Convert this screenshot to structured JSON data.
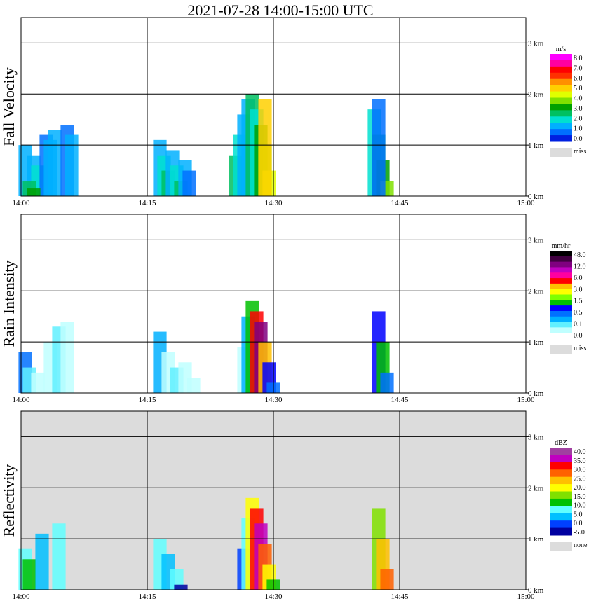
{
  "title": "2021-07-28   14:00-15:00 UTC",
  "colors": {
    "miss": "#dcdcdc",
    "grid": "#000000",
    "frame": "#000000"
  },
  "chart_data": [
    {
      "type": "heatmap",
      "title": "Fall Velocity",
      "ylabel": "Fall Velocity",
      "x_ticks": [
        "14:00",
        "14:15",
        "14:30",
        "14:45",
        "15:00"
      ],
      "y_ticks": [
        "0 km",
        "1 km",
        "2 km",
        "3 km"
      ],
      "ylim": [
        0,
        3.5
      ],
      "background": "#ffffff",
      "colorbar": {
        "unit": "m/s",
        "colors": [
          "#0020e0",
          "#0070ff",
          "#00b0ff",
          "#00e0d0",
          "#00c060",
          "#00a000",
          "#80e000",
          "#e0ff00",
          "#ffd000",
          "#ff9000",
          "#ff3000",
          "#ff0000",
          "#ff00a0",
          "#ff00ff"
        ],
        "labels": [
          "8.0",
          "7.0",
          "6.0",
          "5.0",
          "4.0",
          "3.0",
          "2.0",
          "1.0",
          "0.0"
        ],
        "miss_label": "miss"
      },
      "cells": [
        {
          "t": 0.5,
          "h": 1.0,
          "v": 2
        },
        {
          "t": 1.5,
          "h": 0.8,
          "v": 2
        },
        {
          "t": 2.0,
          "h": 0.6,
          "v": 3
        },
        {
          "t": 3.0,
          "h": 1.2,
          "v": 1
        },
        {
          "t": 3.5,
          "h": 1.1,
          "v": 2
        },
        {
          "t": 4.0,
          "h": 1.3,
          "v": 2
        },
        {
          "t": 5.5,
          "h": 1.4,
          "v": 1
        },
        {
          "t": 6.0,
          "h": 1.2,
          "v": 2
        },
        {
          "t": 1.0,
          "h": 0.3,
          "v": 4
        },
        {
          "t": 1.5,
          "h": 0.15,
          "v": 5
        },
        {
          "t": 16.5,
          "h": 1.1,
          "v": 2
        },
        {
          "t": 17.0,
          "h": 0.8,
          "v": 3
        },
        {
          "t": 17.5,
          "h": 0.5,
          "v": 4
        },
        {
          "t": 18.0,
          "h": 0.9,
          "v": 2
        },
        {
          "t": 18.5,
          "h": 0.6,
          "v": 3
        },
        {
          "t": 19.0,
          "h": 0.3,
          "v": 4
        },
        {
          "t": 19.5,
          "h": 0.7,
          "v": 2
        },
        {
          "t": 20.0,
          "h": 0.5,
          "v": 1
        },
        {
          "t": 25.5,
          "h": 0.8,
          "v": 4
        },
        {
          "t": 26.0,
          "h": 1.2,
          "v": 3
        },
        {
          "t": 26.5,
          "h": 1.6,
          "v": 2
        },
        {
          "t": 27.0,
          "h": 1.9,
          "v": 2
        },
        {
          "t": 27.5,
          "h": 2.0,
          "v": 4
        },
        {
          "t": 28.0,
          "h": 1.7,
          "v": 3
        },
        {
          "t": 28.5,
          "h": 1.4,
          "v": 5
        },
        {
          "t": 29.0,
          "h": 1.0,
          "v": 6
        },
        {
          "t": 29.5,
          "h": 0.5,
          "v": 7
        },
        {
          "t": 29.0,
          "h": 1.9,
          "v": 8
        },
        {
          "t": 42.0,
          "h": 1.7,
          "v": 3
        },
        {
          "t": 42.5,
          "h": 1.2,
          "v": 4
        },
        {
          "t": 43.0,
          "h": 0.7,
          "v": 5
        },
        {
          "t": 43.5,
          "h": 0.3,
          "v": 6
        },
        {
          "t": 42.5,
          "h": 1.9,
          "v": 1
        }
      ]
    },
    {
      "type": "heatmap",
      "title": "Rain Intensity",
      "ylabel": "Rain Intensity",
      "x_ticks": [
        "14:00",
        "14:15",
        "14:30",
        "14:45",
        "15:00"
      ],
      "y_ticks": [
        "0 km",
        "1 km",
        "2 km",
        "3 km"
      ],
      "ylim": [
        0,
        3.5
      ],
      "background": "#ffffff",
      "colorbar": {
        "unit": "mm/hr",
        "colors": [
          "#ffffff",
          "#c0ffff",
          "#60f0ff",
          "#00b0ff",
          "#0070ff",
          "#0000ff",
          "#00c000",
          "#80ff00",
          "#ffff00",
          "#ffc000",
          "#ff0000",
          "#ff00a0",
          "#c000c0",
          "#800080",
          "#400040",
          "#000000"
        ],
        "labels": [
          "48.0",
          "12.0",
          "6.0",
          "3.0",
          "1.5",
          "0.5",
          "0.1",
          "0.0"
        ],
        "miss_label": "miss"
      },
      "cells": [
        {
          "t": 0.5,
          "h": 0.8,
          "v": 4
        },
        {
          "t": 1.0,
          "h": 0.5,
          "v": 2
        },
        {
          "t": 2.0,
          "h": 0.4,
          "v": 1
        },
        {
          "t": 3.5,
          "h": 1.0,
          "v": 1
        },
        {
          "t": 4.5,
          "h": 1.3,
          "v": 2
        },
        {
          "t": 5.5,
          "h": 1.4,
          "v": 1
        },
        {
          "t": 16.5,
          "h": 1.2,
          "v": 3
        },
        {
          "t": 17.5,
          "h": 0.8,
          "v": 1
        },
        {
          "t": 18.5,
          "h": 0.5,
          "v": 2
        },
        {
          "t": 19.5,
          "h": 0.6,
          "v": 1
        },
        {
          "t": 20.5,
          "h": 0.3,
          "v": 1
        },
        {
          "t": 26.5,
          "h": 0.9,
          "v": 1
        },
        {
          "t": 27.0,
          "h": 1.5,
          "v": 3
        },
        {
          "t": 27.5,
          "h": 1.8,
          "v": 6
        },
        {
          "t": 28.0,
          "h": 1.6,
          "v": 10
        },
        {
          "t": 28.5,
          "h": 1.4,
          "v": 13
        },
        {
          "t": 29.0,
          "h": 1.0,
          "v": 9
        },
        {
          "t": 29.5,
          "h": 0.6,
          "v": 5
        },
        {
          "t": 30.0,
          "h": 0.2,
          "v": 4
        },
        {
          "t": 42.5,
          "h": 1.6,
          "v": 5
        },
        {
          "t": 43.0,
          "h": 1.0,
          "v": 6
        },
        {
          "t": 43.5,
          "h": 0.4,
          "v": 4
        }
      ]
    },
    {
      "type": "heatmap",
      "title": "Reflectivity",
      "ylabel": "Reflectivity",
      "x_ticks": [
        "14:00",
        "14:15",
        "14:30",
        "14:45",
        "15:00"
      ],
      "y_ticks": [
        "0 km",
        "1 km",
        "2 km",
        "3 km"
      ],
      "ylim": [
        0,
        3.5
      ],
      "background": "#dcdcdc",
      "colorbar": {
        "unit": "dBZ",
        "colors": [
          "#0000a0",
          "#0040ff",
          "#00c0ff",
          "#60ffff",
          "#00c000",
          "#80e000",
          "#ffff00",
          "#ffc000",
          "#ff6000",
          "#ff0000",
          "#c000c0",
          "#a040a0"
        ],
        "labels": [
          "40.0",
          "35.0",
          "30.0",
          "25.0",
          "20.0",
          "15.0",
          "10.0",
          "5.0",
          "0.0",
          "-5.0"
        ],
        "miss_label": "none"
      },
      "cells": [
        {
          "t": 0.5,
          "h": 0.8,
          "v": 3
        },
        {
          "t": 1.0,
          "h": 0.6,
          "v": 4
        },
        {
          "t": 2.5,
          "h": 1.1,
          "v": 2
        },
        {
          "t": 4.5,
          "h": 1.3,
          "v": 3
        },
        {
          "t": 16.5,
          "h": 1.0,
          "v": 3
        },
        {
          "t": 17.5,
          "h": 0.7,
          "v": 2
        },
        {
          "t": 18.5,
          "h": 0.4,
          "v": 3
        },
        {
          "t": 19.0,
          "h": 0.1,
          "v": 0
        },
        {
          "t": 26.5,
          "h": 0.8,
          "v": 1
        },
        {
          "t": 27.0,
          "h": 1.4,
          "v": 3
        },
        {
          "t": 27.5,
          "h": 1.8,
          "v": 6
        },
        {
          "t": 28.0,
          "h": 1.6,
          "v": 9
        },
        {
          "t": 28.5,
          "h": 1.3,
          "v": 10
        },
        {
          "t": 29.0,
          "h": 0.9,
          "v": 8
        },
        {
          "t": 29.5,
          "h": 0.5,
          "v": 6
        },
        {
          "t": 30.0,
          "h": 0.2,
          "v": 4
        },
        {
          "t": 42.5,
          "h": 1.6,
          "v": 5
        },
        {
          "t": 43.0,
          "h": 1.0,
          "v": 7
        },
        {
          "t": 43.5,
          "h": 0.4,
          "v": 8
        }
      ]
    }
  ]
}
